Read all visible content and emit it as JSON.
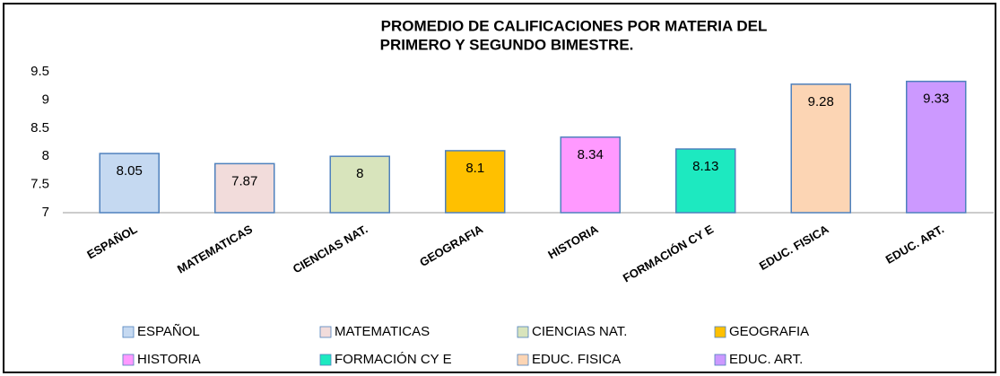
{
  "chart_data": {
    "type": "bar",
    "title": "PROMEDIO DE CALIFICACIONES POR MATERIA DEL",
    "subtitle": "PRIMERO Y SEGUNDO BIMESTRE.",
    "categories": [
      "ESPAÑOL",
      "MATEMATICAS",
      "CIENCIAS NAT.",
      "GEOGRAFIA",
      "HISTORIA",
      "FORMACIÓN CY E",
      "EDUC. FISICA",
      "EDUC. ART."
    ],
    "values": [
      8.05,
      7.87,
      8,
      8.1,
      8.34,
      8.13,
      9.28,
      9.33
    ],
    "colors": [
      "#c5d9f1",
      "#f2dcdb",
      "#d8e4bc",
      "#ffc000",
      "#ff99ff",
      "#1de9c0",
      "#fcd5b4",
      "#cc99ff"
    ],
    "ylim": [
      7,
      9.5
    ],
    "yticks": [
      7,
      7.5,
      8,
      8.5,
      9,
      9.5
    ],
    "grid": false,
    "legend": "bottom"
  }
}
